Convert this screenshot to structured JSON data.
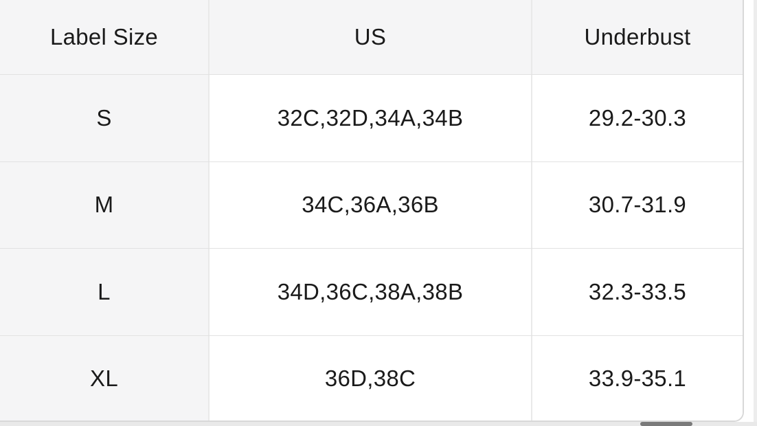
{
  "table": {
    "columns": [
      {
        "key": "label_size",
        "label": "Label Size"
      },
      {
        "key": "us",
        "label": "US"
      },
      {
        "key": "underbust",
        "label": "Underbust"
      }
    ],
    "rows": [
      {
        "label_size": "S",
        "us": "32C,32D,34A,34B",
        "underbust": "29.2-30.3"
      },
      {
        "label_size": "M",
        "us": "34C,36A,36B",
        "underbust": "30.7-31.9"
      },
      {
        "label_size": "L",
        "us": "34D,36C,38A,38B",
        "underbust": "32.3-33.5"
      },
      {
        "label_size": "XL",
        "us": "36D,38C",
        "underbust": "33.9-35.1"
      }
    ]
  },
  "colors": {
    "header_bg": "#f5f5f6",
    "row_bg": "#ffffff",
    "divider": "#e2e2e2",
    "outer_border": "#d8d8d8",
    "text": "#1a1a1a",
    "scrollbar_thumb": "#7a7a7a",
    "scrollbar_track": "#e9e9e9"
  }
}
